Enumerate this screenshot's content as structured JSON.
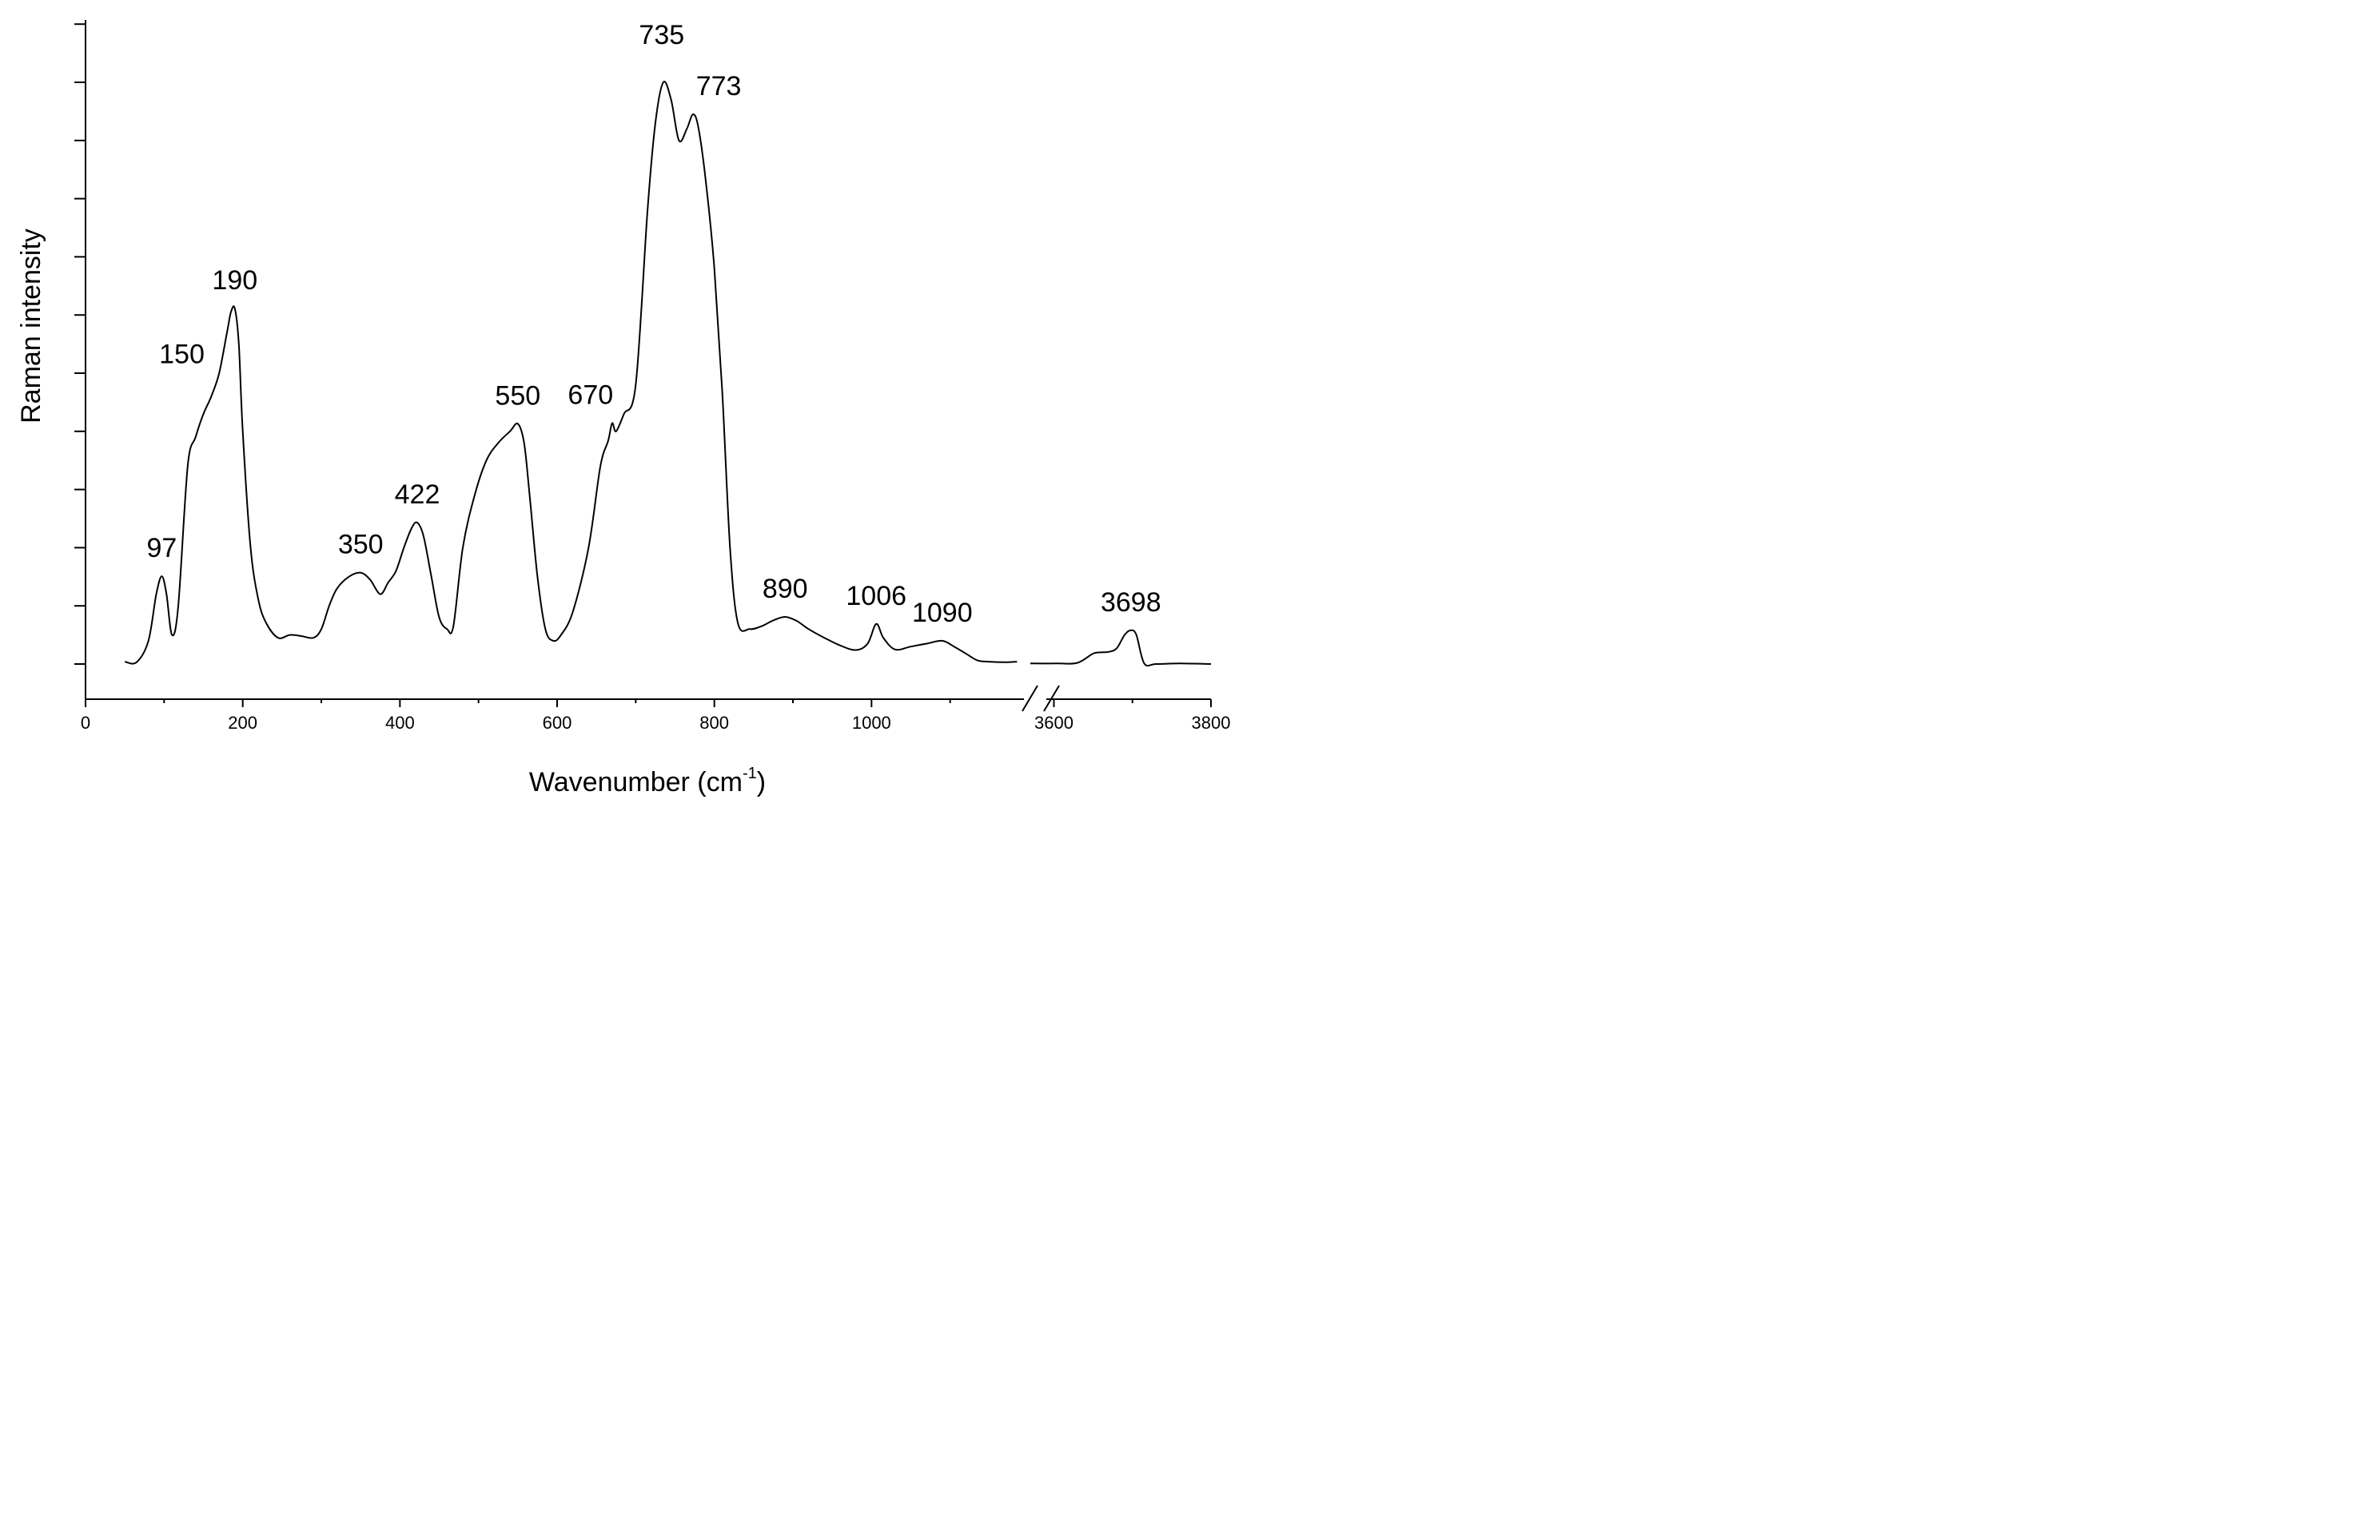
{
  "chart_data": {
    "type": "line",
    "title": "",
    "xlabel": "Wavenumber (cm",
    "xlabel_superscript": "-1",
    "xlabel_suffix": ")",
    "ylabel": "Raman intensity",
    "grid": false,
    "legend": "none",
    "x_axis": {
      "broken": true,
      "segments": [
        {
          "range": [
            0,
            1200
          ],
          "ticks": [
            0,
            200,
            400,
            600,
            800,
            1000
          ]
        },
        {
          "range": [
            3570,
            3800
          ],
          "ticks": [
            3600,
            3800
          ]
        }
      ]
    },
    "ylim": [
      -0.06,
      1.14
    ],
    "peak_labels": [
      {
        "text": "97",
        "x": 97,
        "y": 0.151
      },
      {
        "text": "150",
        "x": 150,
        "y": 0.484
      },
      {
        "text": "190",
        "x": 190,
        "y": 0.611
      },
      {
        "text": "350",
        "x": 350,
        "y": 0.157
      },
      {
        "text": "422",
        "x": 422,
        "y": 0.243
      },
      {
        "text": "550",
        "x": 550,
        "y": 0.413
      },
      {
        "text": "670",
        "x": 670,
        "y": 0.414
      },
      {
        "text": "735",
        "x": 735,
        "y": 1.0
      },
      {
        "text": "773",
        "x": 773,
        "y": 0.945
      },
      {
        "text": "890",
        "x": 890,
        "y": 0.081
      },
      {
        "text": "1006",
        "x": 1006,
        "y": 0.069
      },
      {
        "text": "1090",
        "x": 1090,
        "y": 0.04
      },
      {
        "text": "3698",
        "x": 3698,
        "y": 0.058
      }
    ],
    "series": [
      {
        "segment": 0,
        "x": [
          50,
          65,
          80,
          90,
          97,
          103,
          110,
          118,
          130,
          140,
          150,
          160,
          170,
          180,
          185,
          190,
          195,
          200,
          210,
          220,
          230,
          245,
          260,
          275,
          290,
          300,
          310,
          320,
          335,
          350,
          362,
          375,
          385,
          395,
          405,
          415,
          422,
          430,
          440,
          450,
          460,
          468,
          480,
          495,
          510,
          525,
          540,
          550,
          558,
          565,
          575,
          585,
          595,
          605,
          620,
          640,
          655,
          665,
          670,
          675,
          685,
          700,
          715,
          725,
          735,
          745,
          755,
          765,
          773,
          780,
          790,
          800,
          810,
          820,
          830,
          845,
          860,
          875,
          890,
          905,
          920,
          940,
          960,
          980,
          995,
          1006,
          1015,
          1030,
          1050,
          1070,
          1090,
          1105,
          1120,
          1135,
          1150,
          1170,
          1185
        ],
        "y": [
          0.004,
          0.003,
          0.04,
          0.12,
          0.151,
          0.12,
          0.05,
          0.1,
          0.34,
          0.39,
          0.43,
          0.46,
          0.5,
          0.57,
          0.605,
          0.611,
          0.55,
          0.4,
          0.2,
          0.11,
          0.07,
          0.045,
          0.05,
          0.048,
          0.045,
          0.06,
          0.1,
          0.13,
          0.15,
          0.157,
          0.145,
          0.12,
          0.14,
          0.16,
          0.2,
          0.234,
          0.243,
          0.22,
          0.15,
          0.08,
          0.06,
          0.065,
          0.2,
          0.29,
          0.35,
          0.38,
          0.4,
          0.413,
          0.38,
          0.29,
          0.15,
          0.06,
          0.04,
          0.05,
          0.09,
          0.2,
          0.34,
          0.384,
          0.414,
          0.4,
          0.43,
          0.48,
          0.78,
          0.93,
          1.0,
          0.97,
          0.9,
          0.92,
          0.945,
          0.92,
          0.82,
          0.68,
          0.47,
          0.2,
          0.07,
          0.06,
          0.065,
          0.075,
          0.081,
          0.074,
          0.06,
          0.045,
          0.032,
          0.024,
          0.035,
          0.069,
          0.045,
          0.025,
          0.03,
          0.035,
          0.04,
          0.03,
          0.018,
          0.006,
          0.004,
          0.003,
          0.004
        ]
      },
      {
        "segment": 1,
        "x": [
          3570,
          3605,
          3630,
          3650,
          3660,
          3670,
          3680,
          3690,
          3698,
          3705,
          3715,
          3730,
          3760,
          3800
        ],
        "y": [
          0.001,
          0.001,
          0.002,
          0.018,
          0.02,
          0.021,
          0.027,
          0.05,
          0.058,
          0.05,
          0.001,
          0.0,
          0.001,
          0.0
        ]
      }
    ]
  }
}
